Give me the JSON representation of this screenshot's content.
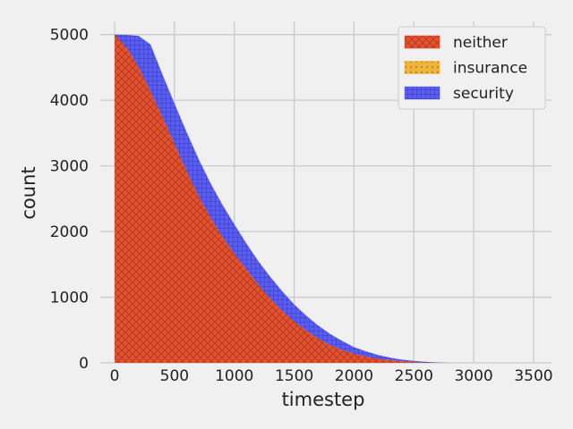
{
  "chart_data": {
    "type": "area",
    "stacked": true,
    "xlabel": "timestep",
    "ylabel": "count",
    "xlim": [
      -120,
      3650
    ],
    "ylim": [
      0,
      5200
    ],
    "xticks": [
      0,
      500,
      1000,
      1500,
      2000,
      2500,
      3000,
      3500
    ],
    "yticks": [
      0,
      1000,
      2000,
      3000,
      4000,
      5000
    ],
    "grid": true,
    "legend_position": "top-right",
    "x": [
      0,
      100,
      200,
      300,
      400,
      500,
      600,
      700,
      800,
      900,
      1000,
      1100,
      1200,
      1300,
      1400,
      1500,
      1600,
      1700,
      1800,
      1900,
      2000,
      2100,
      2200,
      2300,
      2400,
      2500,
      2600,
      2700,
      2800
    ],
    "series": [
      {
        "name": "neither",
        "color": "#e5502f",
        "hatch": "crosshatch",
        "values": [
          5000,
          4800,
          4500,
          4130,
          3740,
          3330,
          2920,
          2540,
          2210,
          1920,
          1660,
          1420,
          1190,
          980,
          790,
          630,
          490,
          370,
          270,
          195,
          140,
          95,
          62,
          40,
          24,
          14,
          7,
          3,
          0
        ]
      },
      {
        "name": "insurance",
        "color": "#f0b43c",
        "hatch": "dots",
        "values": [
          0,
          0,
          0,
          0,
          0,
          0,
          0,
          0,
          0,
          0,
          0,
          0,
          0,
          0,
          0,
          0,
          0,
          0,
          0,
          0,
          0,
          0,
          0,
          0,
          0,
          0,
          0,
          0,
          0
        ]
      },
      {
        "name": "security",
        "color": "#5a5ef0",
        "hatch": "grid",
        "values": [
          0,
          195,
          480,
          720,
          650,
          620,
          600,
          570,
          530,
          490,
          450,
          400,
          360,
          330,
          300,
          260,
          230,
          200,
          170,
          140,
          100,
          80,
          58,
          40,
          26,
          16,
          9,
          4,
          0
        ]
      }
    ]
  }
}
